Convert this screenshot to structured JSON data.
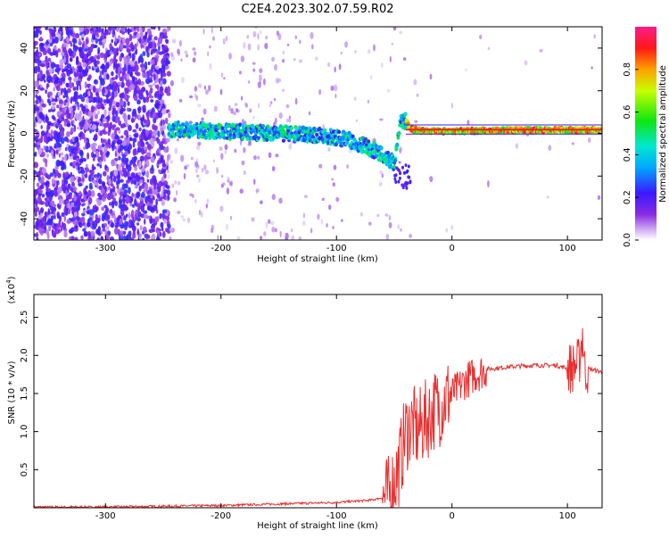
{
  "title": "C2E4.2023.302.07.59.R02",
  "chart_data": [
    {
      "type": "heatmap",
      "name": "spectrogram",
      "xlabel": "Height of straight line (km)",
      "ylabel": "Frequency (Hz)",
      "xlim": [
        -362,
        130
      ],
      "ylim": [
        -50,
        50
      ],
      "xticks": [
        -300,
        -200,
        -100,
        0,
        100
      ],
      "yticks": [
        -40,
        -20,
        0,
        20,
        40
      ],
      "colorbar": {
        "label": "Normalized spectral amplitude",
        "range": [
          0,
          1
        ],
        "ticks": [
          "0.0",
          "0.2",
          "0.4",
          "0.6",
          "0.8"
        ]
      },
      "signal_track": {
        "x": [
          -245,
          -200,
          -150,
          -110,
          -90,
          -75,
          -60,
          -50,
          -45,
          -40,
          -35,
          -25,
          -10,
          0,
          50,
          100,
          130
        ],
        "y": [
          2,
          1,
          0,
          -1,
          -3,
          -6,
          -10,
          -14,
          5,
          6,
          2,
          1,
          1,
          1,
          1.5,
          1.5,
          1.5
        ]
      },
      "noise_region_x": [
        -362,
        -245
      ]
    },
    {
      "type": "line",
      "name": "snr",
      "xlabel": "Height of straight line (km)",
      "ylabel": "SNR (10 * v/v)",
      "yscale_label": "(x10^4)",
      "xlim": [
        -362,
        130
      ],
      "ylim": [
        0,
        2.8
      ],
      "xticks": [
        -300,
        -200,
        -100,
        0,
        100
      ],
      "yticks": [
        0.5,
        1.0,
        1.5,
        2.0,
        2.5
      ],
      "ytick_labels": [
        "0.5",
        "1.0",
        "1.5",
        "2.0",
        "2.5"
      ],
      "series": [
        {
          "color": "#e83030",
          "x": [
            -362,
            -300,
            -200,
            -150,
            -100,
            -70,
            -55,
            -50,
            -45,
            -40,
            -35,
            -30,
            -25,
            -20,
            -15,
            -10,
            -5,
            0,
            5,
            10,
            20,
            30,
            50,
            70,
            90,
            100,
            105,
            110,
            113,
            115,
            120,
            130
          ],
          "y": [
            0.01,
            0.01,
            0.03,
            0.05,
            0.07,
            0.1,
            0.15,
            0.35,
            0.6,
            1.0,
            1.1,
            1.0,
            1.1,
            1.2,
            1.3,
            1.35,
            1.45,
            1.5,
            1.55,
            1.65,
            1.75,
            1.82,
            1.85,
            1.87,
            1.87,
            1.83,
            1.85,
            1.9,
            2.3,
            1.82,
            1.82,
            1.78
          ]
        }
      ]
    }
  ]
}
